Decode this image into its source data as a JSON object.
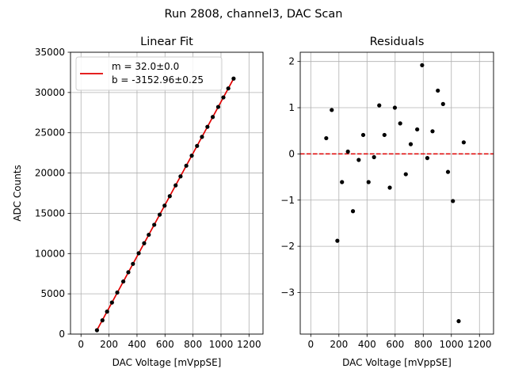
{
  "suptitle": "Run 2808, channel3, DAC Scan",
  "chart_data": [
    {
      "type": "scatter",
      "title": "Linear Fit",
      "xlabel": "DAC Voltage [mVppSE]",
      "ylabel": "ADC Counts",
      "xlim": [
        -75,
        1300
      ],
      "ylim": [
        0,
        35000
      ],
      "xticks": [
        0,
        200,
        400,
        600,
        800,
        1000,
        1200
      ],
      "xtick_labels": [
        "0",
        "200",
        "400",
        "600",
        "800",
        "1000",
        "1200"
      ],
      "yticks": [
        0,
        5000,
        10000,
        15000,
        20000,
        25000,
        30000,
        35000
      ],
      "ytick_labels": [
        "0",
        "5000",
        "10000",
        "15000",
        "20000",
        "25000",
        "30000",
        "35000"
      ],
      "grid": true,
      "legend_position": "top-left",
      "series": [
        {
          "kind": "points",
          "color": "#000000",
          "x": [
            114,
            153,
            186,
            221,
            259,
            302,
            338,
            371,
            412,
            451,
            484,
            523,
            562,
            597,
            634,
            676,
            711,
            752,
            791,
            829,
            864,
            903,
            941,
            980,
            1017,
            1052,
            1090
          ],
          "y": [
            480,
            1710,
            2790,
            3920,
            5160,
            6530,
            7680,
            8720,
            10040,
            11280,
            12330,
            13570,
            14830,
            15950,
            17130,
            18470,
            19590,
            20910,
            22160,
            23370,
            24490,
            25740,
            26960,
            28210,
            29390,
            30510,
            31730
          ]
        },
        {
          "kind": "fit-line",
          "name": "m = 32.0±0.0\nb = -3152.96±0.25",
          "color": "#e00000",
          "x": [
            114,
            1090
          ],
          "y": [
            495,
            31727
          ]
        }
      ],
      "legend": [
        "m = 32.0±0.0",
        "b = -3152.96±0.25"
      ]
    },
    {
      "type": "scatter",
      "title": "Residuals",
      "xlabel": "DAC Voltage [mVppSE]",
      "ylabel": "",
      "xlim": [
        -75,
        1300
      ],
      "ylim": [
        -3.9,
        2.2
      ],
      "xticks": [
        0,
        200,
        400,
        600,
        800,
        1000,
        1200
      ],
      "xtick_labels": [
        "0",
        "200",
        "400",
        "600",
        "800",
        "1000",
        "1200"
      ],
      "yticks": [
        -3,
        -2,
        -1,
        0,
        1,
        2
      ],
      "ytick_labels": [
        "−3",
        "−2",
        "−1",
        "0",
        "1",
        "2"
      ],
      "grid": true,
      "reference_line": {
        "y": 0,
        "color": "#e00000",
        "style": "dashed"
      },
      "series": [
        {
          "kind": "points",
          "color": "#000000",
          "x": [
            110,
            149,
            189,
            222,
            264,
            300,
            341,
            373,
            411,
            450,
            487,
            524,
            562,
            598,
            636,
            676,
            711,
            757,
            792,
            829,
            866,
            904,
            941,
            976,
            1011,
            1052,
            1088
          ],
          "y": [
            0.34,
            0.95,
            -1.88,
            -0.61,
            0.05,
            -1.24,
            -0.13,
            0.41,
            -0.61,
            -0.07,
            1.05,
            0.41,
            -0.73,
            1.0,
            0.66,
            -0.44,
            0.21,
            0.53,
            1.92,
            -0.09,
            0.49,
            1.37,
            1.08,
            -0.39,
            -1.02,
            -3.62,
            0.25
          ]
        }
      ]
    }
  ]
}
